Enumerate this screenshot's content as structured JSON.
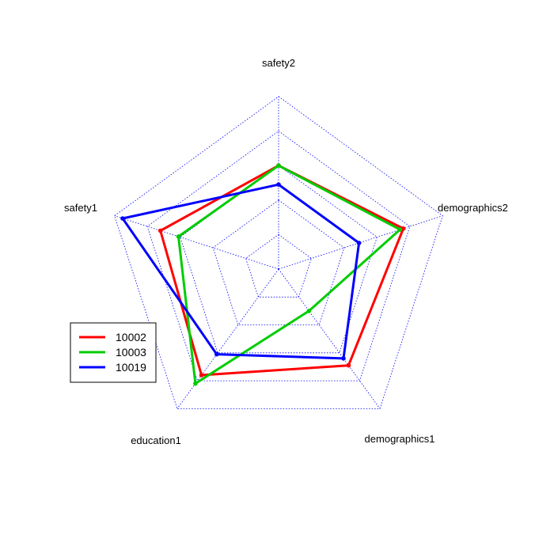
{
  "chart_data": {
    "type": "radar",
    "title": "",
    "axes": [
      "safety2",
      "demographics2",
      "demographics1",
      "education1",
      "safety1"
    ],
    "series": [
      {
        "name": "10002",
        "color": "#ff0000",
        "values": [
          0.6,
          0.76,
          0.69,
          0.76,
          0.72
        ]
      },
      {
        "name": "10003",
        "color": "#00cc00",
        "values": [
          0.6,
          0.74,
          0.3,
          0.82,
          0.61
        ]
      },
      {
        "name": "10019",
        "color": "#0000ff",
        "values": [
          0.49,
          0.49,
          0.64,
          0.61,
          0.95
        ]
      }
    ],
    "range": [
      0,
      1
    ],
    "grid_levels": 5,
    "grid_color": "#0000ff",
    "legend_position": "left"
  }
}
